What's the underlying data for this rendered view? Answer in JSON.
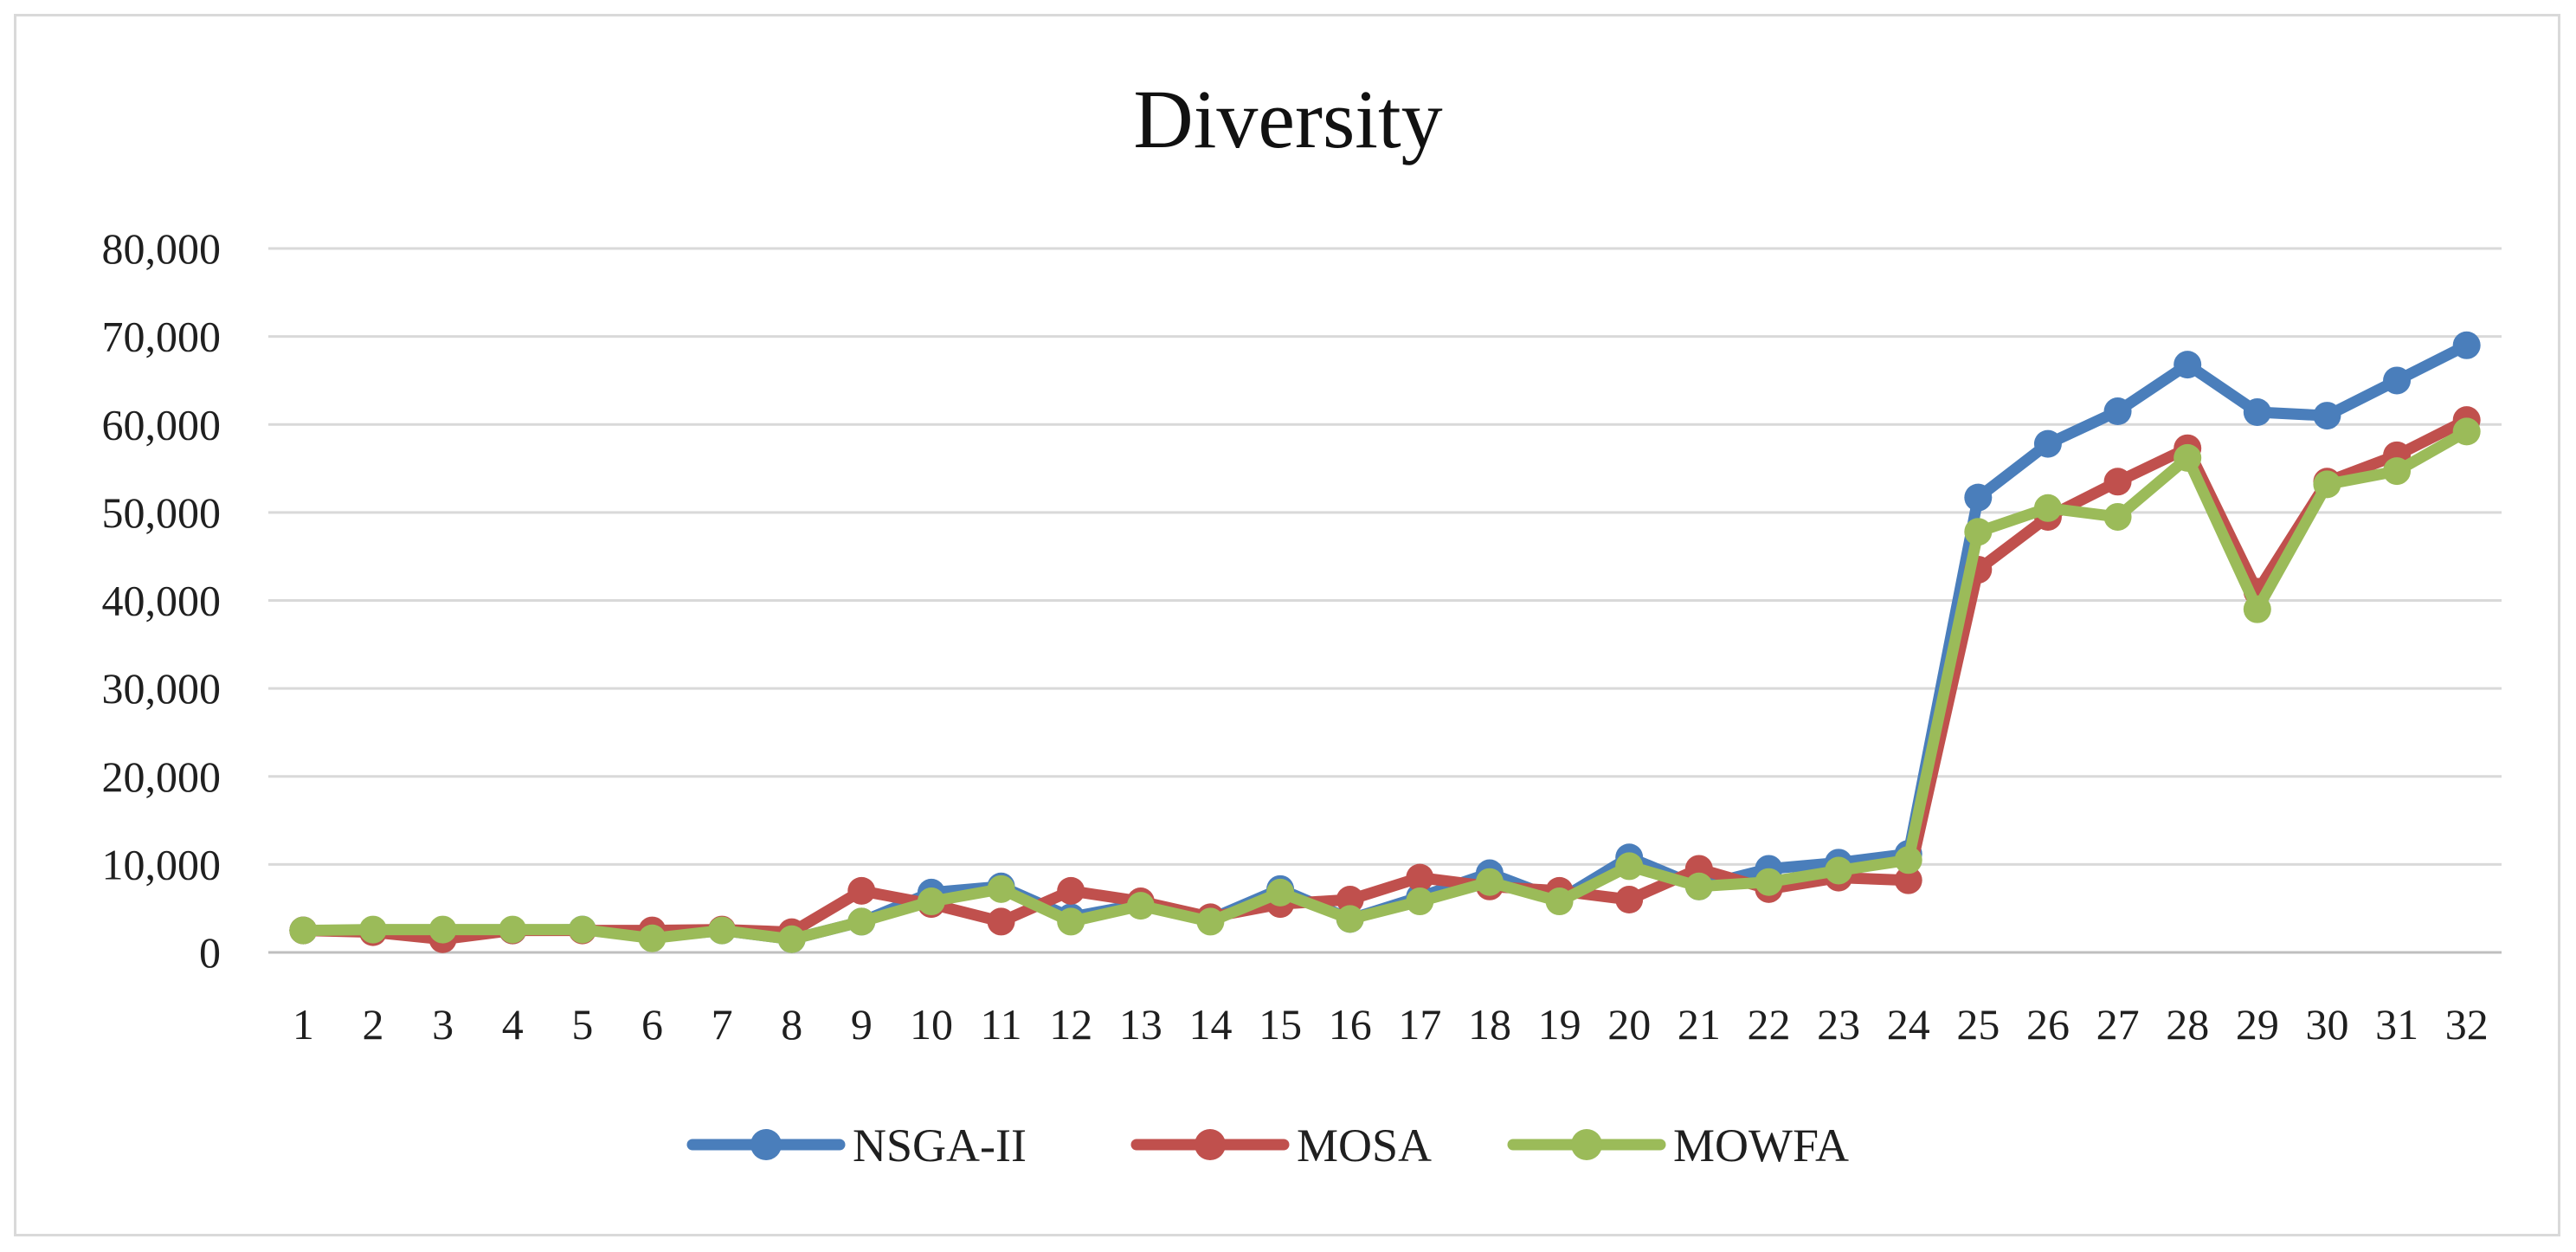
{
  "chart_data": {
    "type": "line",
    "title": "Diversity",
    "xlabel": "",
    "ylabel": "",
    "ylim": [
      0,
      80000
    ],
    "yticks": [
      0,
      10000,
      20000,
      30000,
      40000,
      50000,
      60000,
      70000,
      80000
    ],
    "ytick_labels": [
      "0",
      "10,000",
      "20,000",
      "30,000",
      "40,000",
      "50,000",
      "60,000",
      "70,000",
      "80,000"
    ],
    "grid": true,
    "legend_position": "bottom",
    "categories": [
      "1",
      "2",
      "3",
      "4",
      "5",
      "6",
      "7",
      "8",
      "9",
      "10",
      "11",
      "12",
      "13",
      "14",
      "15",
      "16",
      "17",
      "18",
      "19",
      "20",
      "21",
      "22",
      "23",
      "24",
      "25",
      "26",
      "27",
      "28",
      "29",
      "30",
      "31",
      "32"
    ],
    "series": [
      {
        "name": "NSGA-II",
        "color": "#4a7ebb",
        "values": [
          2500,
          2400,
          2300,
          2500,
          2600,
          1700,
          2500,
          1500,
          3500,
          6800,
          7500,
          4000,
          5500,
          3800,
          7200,
          3800,
          6300,
          9000,
          6000,
          10800,
          7500,
          9500,
          10200,
          11200,
          51700,
          57800,
          61500,
          66800,
          61400,
          61000,
          65000,
          69000
        ]
      },
      {
        "name": "MOSA",
        "color": "#c0504d",
        "values": [
          2500,
          2300,
          1500,
          2500,
          2500,
          2500,
          2600,
          2300,
          7000,
          5500,
          3500,
          7000,
          5800,
          4000,
          5500,
          6000,
          8500,
          7500,
          7000,
          6000,
          9500,
          7200,
          8500,
          8200,
          43500,
          49500,
          53500,
          57300,
          41000,
          53500,
          56500,
          60500
        ]
      },
      {
        "name": "MOWFA",
        "color": "#9bbb59",
        "values": [
          2500,
          2600,
          2600,
          2600,
          2600,
          1600,
          2500,
          1500,
          3500,
          5800,
          7200,
          3500,
          5300,
          3500,
          6800,
          3800,
          5800,
          8000,
          5800,
          9800,
          7500,
          8000,
          9300,
          10500,
          47800,
          50500,
          49500,
          56200,
          39000,
          53200,
          54700,
          59200
        ]
      }
    ]
  }
}
